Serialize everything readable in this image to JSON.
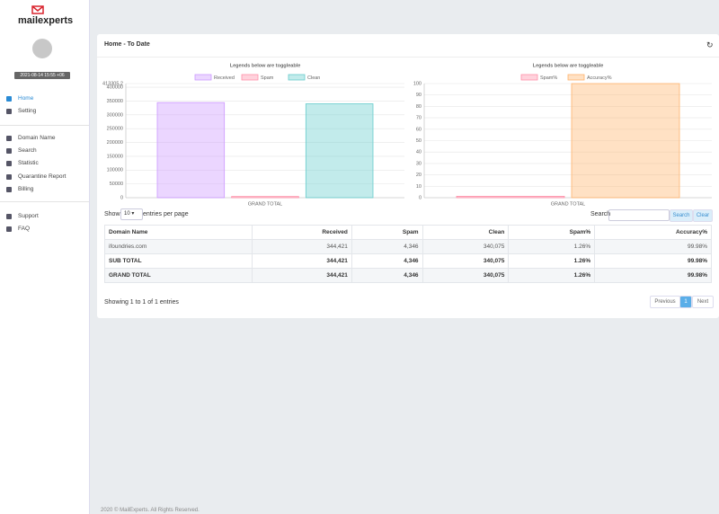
{
  "brand": "mailexperts",
  "datetime": "2021-08-14 15:55 +06",
  "nav": [
    "Home",
    "Setting",
    "Domain Name",
    "Search",
    "Statistic",
    "Quarantine Report",
    "Billing",
    "Support",
    "FAQ"
  ],
  "header": {
    "title": "Home - To Date"
  },
  "chart_data": [
    {
      "type": "bar",
      "title": "Legends below are toggleable",
      "categories": [
        "GRAND TOTAL"
      ],
      "series": [
        {
          "name": "Received",
          "color": "#cc99ff",
          "values": [
            344421
          ]
        },
        {
          "name": "Spam",
          "color": "#ff8fa8",
          "values": [
            4346
          ]
        },
        {
          "name": "Clean",
          "color": "#66cccc",
          "values": [
            340075
          ]
        }
      ],
      "ylim": [
        0,
        413305.2
      ],
      "yticks": [
        0,
        50000,
        100000,
        150000,
        200000,
        250000,
        300000,
        350000,
        400000,
        413305.2
      ],
      "grid": true
    },
    {
      "type": "bar",
      "title": "Legends below are toggleable",
      "categories": [
        "GRAND TOTAL"
      ],
      "series": [
        {
          "name": "Spam%",
          "color": "#ff8fa8",
          "values": [
            1.26
          ]
        },
        {
          "name": "Accuracy%",
          "color": "#ffb36b",
          "values": [
            99.98
          ]
        }
      ],
      "ylim": [
        0,
        100
      ],
      "yticks": [
        0,
        10,
        20,
        30,
        40,
        50,
        60,
        70,
        80,
        90,
        100
      ],
      "grid": true
    }
  ],
  "table": {
    "show": "Show",
    "page_size": "10",
    "entries_per_page": "entries per page",
    "search_label": "Search",
    "search_button": "Search",
    "clear_button": "Clear",
    "columns": [
      "Domain Name",
      "Received",
      "Spam",
      "Clean",
      "Spam%",
      "Accuracy%"
    ],
    "rows": [
      [
        "ifoundries.com",
        "344,421",
        "4,346",
        "340,075",
        "1.26%",
        "99.98%"
      ],
      [
        "SUB TOTAL",
        "344,421",
        "4,346",
        "340,075",
        "1.26%",
        "99.98%"
      ],
      [
        "GRAND TOTAL",
        "344,421",
        "4,346",
        "340,075",
        "1.26%",
        "99.98%"
      ]
    ],
    "info": "Showing 1 to 1 of 1 entries",
    "previous": "Previous",
    "page": "1",
    "next": "Next"
  },
  "footer": "2020 © MailExperts. All Rights Reserved."
}
